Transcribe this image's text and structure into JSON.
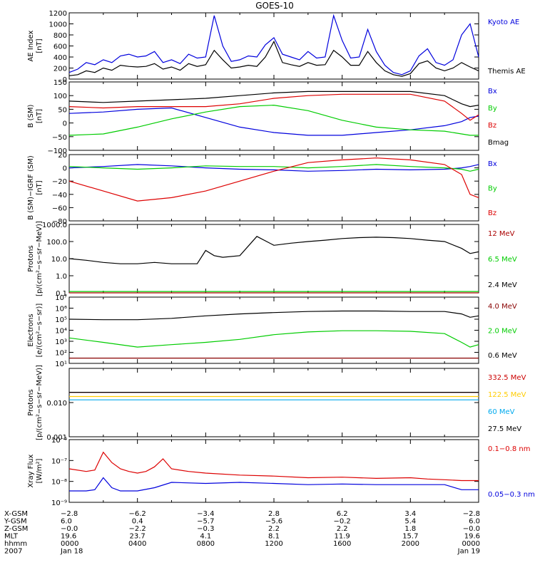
{
  "title": "GOES-10",
  "chart_data": [
    {
      "type": "line",
      "panel": "ae-index",
      "ylabel_lines": [
        "AE Index",
        "[nT]"
      ],
      "ylim": [
        0,
        1200
      ],
      "yticks": [
        0,
        200,
        400,
        600,
        800,
        1000,
        1200
      ],
      "ytick_labels": [
        "0",
        "200",
        "400",
        "600",
        "800",
        "1000",
        "1200"
      ],
      "series": [
        {
          "name": "Kyoto AE",
          "color": "#0000dd",
          "x": [
            0,
            0.5,
            1,
            1.5,
            2,
            2.5,
            3,
            3.5,
            4,
            4.5,
            5,
            5.5,
            6,
            6.5,
            7,
            7.5,
            8,
            8.5,
            9,
            9.5,
            10,
            10.5,
            11,
            11.5,
            12,
            12.5,
            13,
            13.5,
            14,
            14.5,
            15,
            15.5,
            16,
            16.5,
            17,
            17.5,
            18,
            18.5,
            19,
            19.5,
            20,
            20.5,
            21,
            21.5,
            22,
            22.5,
            23,
            23.5,
            24
          ],
          "y": [
            120,
            180,
            300,
            260,
            350,
            300,
            420,
            450,
            400,
            420,
            500,
            300,
            350,
            280,
            450,
            380,
            400,
            1150,
            600,
            320,
            350,
            420,
            400,
            620,
            750,
            450,
            400,
            350,
            500,
            380,
            400,
            1150,
            700,
            380,
            400,
            900,
            500,
            250,
            120,
            80,
            150,
            420,
            550,
            300,
            250,
            350,
            800,
            1000,
            400
          ]
        },
        {
          "name": "Themis AE",
          "color": "#000000",
          "x": [
            0,
            0.5,
            1,
            1.5,
            2,
            2.5,
            3,
            3.5,
            4,
            4.5,
            5,
            5.5,
            6,
            6.5,
            7,
            7.5,
            8,
            8.5,
            9,
            9.5,
            10,
            10.5,
            11,
            11.5,
            12,
            12.5,
            13,
            13.5,
            14,
            14.5,
            15,
            15.5,
            16,
            16.5,
            17,
            17.5,
            18,
            18.5,
            19,
            19.5,
            20,
            20.5,
            21,
            21.5,
            22,
            22.5,
            23,
            23.5,
            24
          ],
          "y": [
            60,
            80,
            150,
            120,
            200,
            160,
            250,
            230,
            220,
            230,
            280,
            180,
            220,
            160,
            280,
            230,
            260,
            520,
            350,
            200,
            220,
            250,
            230,
            400,
            680,
            300,
            260,
            230,
            300,
            250,
            260,
            520,
            400,
            250,
            250,
            500,
            300,
            150,
            80,
            50,
            100,
            280,
            330,
            200,
            150,
            200,
            300,
            220,
            150
          ]
        }
      ]
    },
    {
      "type": "line",
      "panel": "b-gsm",
      "ylabel_lines": [
        "B (SM)",
        "[nT]"
      ],
      "ylim": [
        -100,
        150
      ],
      "yticks": [
        -100,
        -50,
        0,
        50,
        100,
        150
      ],
      "ytick_labels": [
        "−100",
        "−50",
        "0",
        "50",
        "100",
        "150"
      ],
      "series": [
        {
          "name": "Bx",
          "color": "#0000dd",
          "x": [
            0,
            2,
            4,
            6,
            8,
            10,
            12,
            14,
            16,
            18,
            20,
            22,
            23,
            23.5,
            24
          ],
          "y": [
            35,
            40,
            50,
            55,
            20,
            -15,
            -35,
            -45,
            -45,
            -35,
            -25,
            -10,
            5,
            20,
            25
          ]
        },
        {
          "name": "By",
          "color": "#00cc00",
          "x": [
            0,
            2,
            4,
            6,
            8,
            10,
            12,
            14,
            16,
            18,
            20,
            22,
            23,
            23.5,
            24
          ],
          "y": [
            -45,
            -40,
            -15,
            15,
            40,
            60,
            65,
            45,
            10,
            -15,
            -25,
            -30,
            -40,
            -45,
            -45
          ]
        },
        {
          "name": "Bz",
          "color": "#dd0000",
          "x": [
            0,
            2,
            4,
            6,
            8,
            10,
            12,
            14,
            16,
            18,
            20,
            22,
            23,
            23.5,
            24
          ],
          "y": [
            60,
            55,
            60,
            60,
            60,
            70,
            90,
            100,
            105,
            105,
            105,
            80,
            35,
            10,
            30
          ]
        },
        {
          "name": "Bmag",
          "color": "#000000",
          "x": [
            0,
            2,
            4,
            6,
            8,
            10,
            12,
            14,
            16,
            18,
            20,
            22,
            23,
            23.5,
            24
          ],
          "y": [
            80,
            75,
            80,
            85,
            90,
            100,
            110,
            115,
            115,
            115,
            115,
            100,
            70,
            60,
            65
          ]
        }
      ]
    },
    {
      "type": "line",
      "panel": "b-minus-igrf",
      "ylabel_lines": [
        "B (SM)−IGRF (SM)",
        "[nT]"
      ],
      "ylim": [
        -80,
        20
      ],
      "yticks": [
        -80,
        -60,
        -40,
        -20,
        0,
        20
      ],
      "ytick_labels": [
        "−80",
        "−60",
        "−40",
        "−20",
        "0",
        "20"
      ],
      "series": [
        {
          "name": "Bx",
          "color": "#0000dd",
          "x": [
            0,
            2,
            4,
            6,
            8,
            10,
            12,
            14,
            16,
            18,
            20,
            22,
            23,
            23.5,
            24
          ],
          "y": [
            0,
            2,
            5,
            3,
            0,
            -2,
            -3,
            -5,
            -4,
            -2,
            -3,
            -2,
            0,
            2,
            5
          ]
        },
        {
          "name": "By",
          "color": "#00cc00",
          "x": [
            0,
            2,
            4,
            6,
            8,
            10,
            12,
            14,
            16,
            18,
            20,
            22,
            23,
            23.5,
            24
          ],
          "y": [
            2,
            0,
            -2,
            0,
            3,
            2,
            2,
            0,
            2,
            5,
            2,
            0,
            -2,
            -5,
            -2
          ]
        },
        {
          "name": "Bz",
          "color": "#dd0000",
          "x": [
            0,
            2,
            4,
            6,
            8,
            10,
            12,
            14,
            16,
            18,
            20,
            22,
            23,
            23.5,
            24
          ],
          "y": [
            -20,
            -35,
            -50,
            -45,
            -35,
            -20,
            -5,
            8,
            12,
            15,
            12,
            5,
            -10,
            -40,
            -45
          ]
        }
      ]
    },
    {
      "type": "line",
      "panel": "protons-low",
      "yscale": "log",
      "ylabel_lines": [
        "Protons",
        "[p/(cm²−s−sr−MeV)]"
      ],
      "ylim": [
        0.1,
        1000
      ],
      "yticks": [
        0.1,
        1,
        10,
        100,
        1000
      ],
      "ytick_labels": [
        "0.1",
        "1.0",
        "10.0",
        "100.0",
        "1000.0"
      ],
      "series": [
        {
          "name": "12 MeV",
          "color": "#aa0000",
          "x": [
            0,
            24
          ],
          "y": [
            0.1,
            0.1
          ]
        },
        {
          "name": "6.5 MeV",
          "color": "#00cc00",
          "x": [
            0,
            24
          ],
          "y": [
            0.12,
            0.12
          ]
        },
        {
          "name": "2.4 MeV",
          "color": "#000000",
          "x": [
            0,
            1,
            2,
            3,
            4,
            5,
            6,
            7,
            7.5,
            8,
            8.5,
            9,
            10,
            11,
            12,
            13,
            14,
            15,
            16,
            17,
            18,
            19,
            20,
            21,
            22,
            23,
            23.5,
            24
          ],
          "y": [
            10,
            8,
            6,
            5,
            5,
            6,
            5,
            5,
            5,
            30,
            15,
            12,
            15,
            200,
            60,
            80,
            100,
            120,
            150,
            170,
            180,
            170,
            150,
            120,
            100,
            40,
            20,
            25
          ]
        }
      ]
    },
    {
      "type": "line",
      "panel": "electrons",
      "yscale": "log",
      "ylabel_lines": [
        "Electrons",
        "[e/(cm²−s−sr)]"
      ],
      "ylim": [
        10,
        10000000
      ],
      "yticks": [
        10,
        100,
        1000,
        10000,
        100000,
        1000000,
        10000000
      ],
      "ytick_labels": [
        "10¹",
        "10²",
        "10³",
        "10⁴",
        "10⁵",
        "10⁶",
        "10⁷"
      ],
      "series": [
        {
          "name": "4.0 MeV",
          "color": "#880000",
          "x": [
            0,
            24
          ],
          "y": [
            30,
            30
          ]
        },
        {
          "name": "2.0 MeV",
          "color": "#00cc00",
          "x": [
            0,
            2,
            4,
            6,
            8,
            10,
            12,
            14,
            16,
            18,
            20,
            22,
            23,
            23.5,
            24
          ],
          "y": [
            2000,
            800,
            300,
            500,
            800,
            1500,
            4000,
            7000,
            9000,
            9000,
            8000,
            5000,
            800,
            300,
            500
          ]
        },
        {
          "name": "0.6 MeV",
          "color": "#000000",
          "x": [
            0,
            2,
            4,
            6,
            8,
            10,
            12,
            14,
            16,
            18,
            20,
            22,
            23,
            23.5,
            24
          ],
          "y": [
            100000,
            90000,
            90000,
            120000,
            200000,
            300000,
            400000,
            500000,
            550000,
            550000,
            500000,
            500000,
            300000,
            150000,
            200000
          ]
        }
      ]
    },
    {
      "type": "line",
      "panel": "protons-high",
      "yscale": "log",
      "ylabel_lines": [
        "Protons",
        "[p/(cm²−s−sr−MeV)]"
      ],
      "ylim": [
        0.001,
        0.1
      ],
      "yticks": [
        0.001,
        0.01
      ],
      "ytick_labels": [
        "0.001",
        "0.010"
      ],
      "series": [
        {
          "name": "332.5 MeV",
          "color": "#cc0000",
          "x": [
            0,
            24
          ],
          "y": [
            0.02,
            0.02
          ]
        },
        {
          "name": "122.5 MeV",
          "color": "#ffcc00",
          "x": [
            0,
            24
          ],
          "y": [
            0.015,
            0.015
          ]
        },
        {
          "name": "60 MeV",
          "color": "#00aaee",
          "x": [
            0,
            24
          ],
          "y": [
            0.012,
            0.012
          ]
        },
        {
          "name": "27.5 MeV",
          "color": "#000000",
          "x": [
            0,
            24
          ],
          "y": [
            0.02,
            0.02
          ]
        }
      ]
    },
    {
      "type": "line",
      "panel": "xray",
      "yscale": "log",
      "ylabel_lines": [
        "Xray Flux",
        "[W/m²]"
      ],
      "ylim": [
        1e-09,
        1e-06
      ],
      "yticks": [
        1e-09,
        1e-08,
        1e-07,
        1e-06
      ],
      "ytick_labels": [
        "10⁻⁹",
        "10⁻⁸",
        "10⁻⁷",
        "10⁻⁶"
      ],
      "series": [
        {
          "name": "0.1−0.8 nm",
          "color": "#dd0000",
          "x": [
            0,
            1,
            1.5,
            2,
            2.5,
            3,
            3.5,
            4,
            4.5,
            5,
            5.5,
            6,
            7,
            8,
            10,
            12,
            14,
            16,
            18,
            20,
            21,
            22,
            23,
            24
          ],
          "y": [
            4e-08,
            3e-08,
            3.5e-08,
            2.5e-07,
            8e-08,
            4e-08,
            3e-08,
            2.5e-08,
            3e-08,
            5e-08,
            1.2e-07,
            4e-08,
            3e-08,
            2.5e-08,
            2e-08,
            1.8e-08,
            1.5e-08,
            1.6e-08,
            1.4e-08,
            1.5e-08,
            1.3e-08,
            1.2e-08,
            1.1e-08,
            1.1e-08
          ]
        },
        {
          "name": "0.05−0.3 nm",
          "color": "#0000dd",
          "x": [
            0,
            1,
            1.5,
            2,
            2.5,
            3,
            4,
            5,
            6,
            8,
            10,
            12,
            14,
            16,
            18,
            20,
            22,
            23,
            24
          ],
          "y": [
            3.5e-09,
            3.5e-09,
            4e-09,
            1.5e-08,
            5e-09,
            3.5e-09,
            3.5e-09,
            5e-09,
            9e-09,
            8e-09,
            9e-09,
            8e-09,
            7e-09,
            7.5e-09,
            7e-09,
            7e-09,
            7e-09,
            4e-09,
            4e-09
          ]
        }
      ]
    }
  ],
  "x_axis": {
    "row_labels": [
      "X-GSM",
      "Y-GSM",
      "Z-GSM",
      "MLT",
      "hhmm",
      "2007"
    ],
    "columns": [
      [
        "−2.8",
        "6.0",
        "−0.0",
        "19.6",
        "0000",
        "Jan 18"
      ],
      [
        "−6.2",
        "0.4",
        "−2.2",
        "23.7",
        "0400",
        ""
      ],
      [
        "−3.4",
        "−5.7",
        "−0.3",
        "4.1",
        "0800",
        ""
      ],
      [
        "2.8",
        "−5.6",
        "2.2",
        "8.1",
        "1200",
        ""
      ],
      [
        "6.2",
        "−0.2",
        "2.2",
        "11.9",
        "1600",
        ""
      ],
      [
        "3.4",
        "5.4",
        "1.8",
        "15.7",
        "2000",
        ""
      ],
      [
        "−2.8",
        "6.0",
        "−0.0",
        "19.6",
        "0000",
        "Jan 19"
      ]
    ]
  }
}
